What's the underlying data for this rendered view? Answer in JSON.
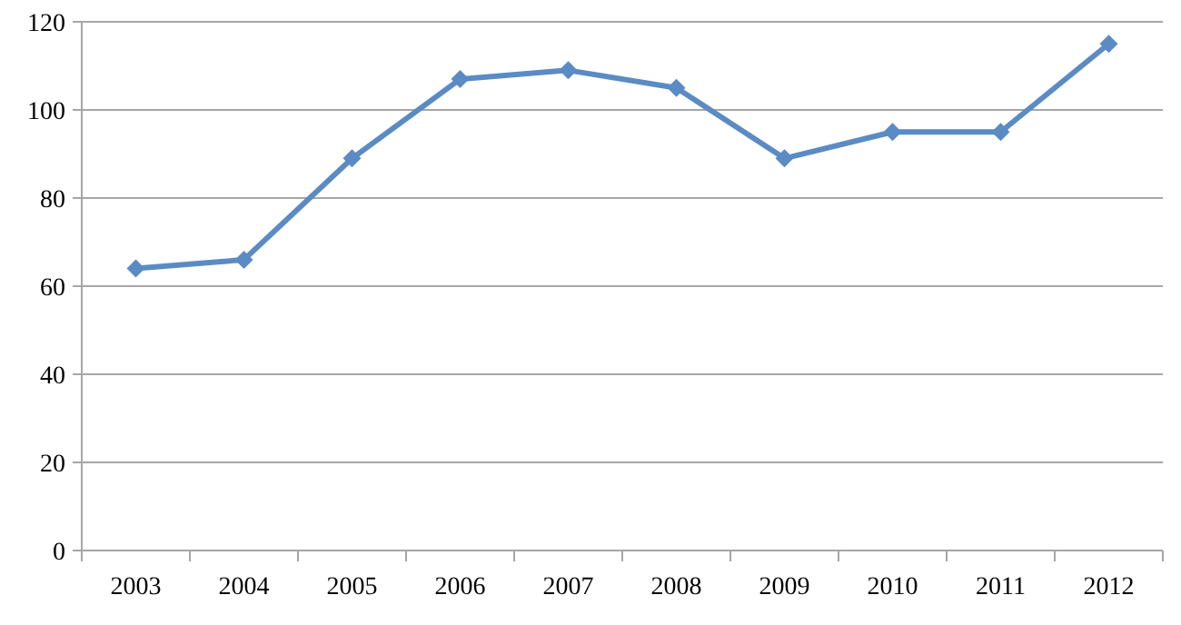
{
  "chart_data": {
    "type": "line",
    "categories": [
      "2003",
      "2004",
      "2005",
      "2006",
      "2007",
      "2008",
      "2009",
      "2010",
      "2011",
      "2012"
    ],
    "series": [
      {
        "color": "#5b8bc4",
        "values": [
          64,
          66,
          89,
          107,
          109,
          105,
          89,
          95,
          95,
          115
        ]
      }
    ],
    "ylim": [
      0,
      120
    ],
    "yticks": [
      0,
      20,
      40,
      60,
      80,
      100,
      120
    ],
    "grid": "y",
    "marker": "diamond",
    "line_style": "solid"
  }
}
